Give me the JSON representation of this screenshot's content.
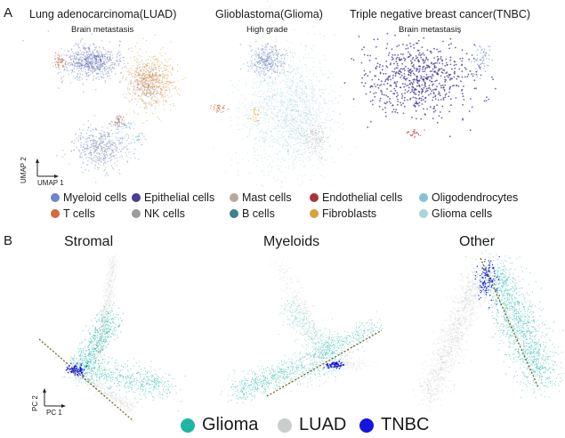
{
  "panel_a": {
    "letter": "A",
    "plots": [
      {
        "title": "Lung adenocarcinoma(LUAD)",
        "subtitle": "Brain metastasis"
      },
      {
        "title": "Glioblastoma(Glioma)",
        "subtitle": "High grade"
      },
      {
        "title": "Triple negative breast cancer(TNBC)",
        "subtitle": "Brain metastasis"
      }
    ],
    "axis": {
      "y": "UMAP 2",
      "x": "UMAP 1"
    },
    "legend": [
      {
        "label": "Myeloid cells",
        "color": "#6f86c4"
      },
      {
        "label": "Epithelial cells",
        "color": "#4b3d92"
      },
      {
        "label": "Mast cells",
        "color": "#b9a99c"
      },
      {
        "label": "Endothelial cells",
        "color": "#a8353a"
      },
      {
        "label": "Oligodendrocytes",
        "color": "#86c3d3"
      },
      {
        "label": "T cells",
        "color": "#d06b3b"
      },
      {
        "label": "NK cells",
        "color": "#9c9c9c"
      },
      {
        "label": "B cells",
        "color": "#3f7f86"
      },
      {
        "label": "Fibroblasts",
        "color": "#d9a040"
      },
      {
        "label": "Glioma cells",
        "color": "#a9d4dc"
      }
    ]
  },
  "panel_b": {
    "letter": "B",
    "plots": [
      {
        "title": "Stromal"
      },
      {
        "title": "Myeloids"
      },
      {
        "title": "Other"
      }
    ],
    "axis": {
      "y": "PC 2",
      "x": "PC 1"
    },
    "legend": [
      {
        "label": "Glioma",
        "color": "#1fb5a5"
      },
      {
        "label": "LUAD",
        "color": "#c9cdcc"
      },
      {
        "label": "TNBC",
        "color": "#1515e0"
      }
    ]
  }
}
